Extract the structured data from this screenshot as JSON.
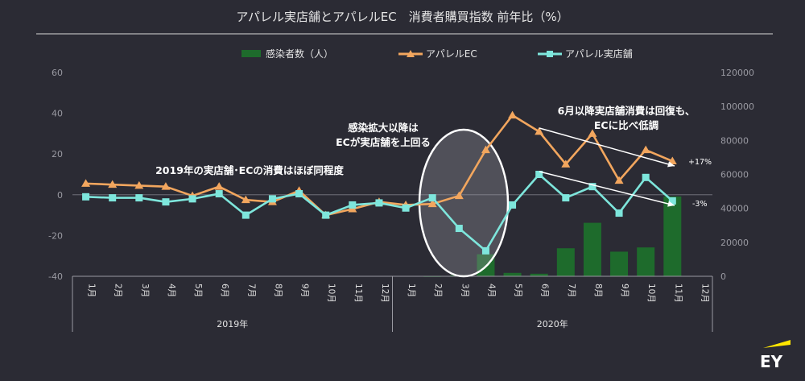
{
  "chart_data": {
    "type": "bar+line",
    "title": "アパレル実店舗とアパレルEC　消費者購買指数 前年比（%）",
    "legend": {
      "placement": "top",
      "items": [
        {
          "label": "感染者数（人）",
          "color": "#1e6b2c",
          "marker": "bar"
        },
        {
          "label": "アパレルEC",
          "color": "#f2a65e",
          "marker": "triangle"
        },
        {
          "label": "アパレル実店舗",
          "color": "#7ee6dc",
          "marker": "square"
        }
      ]
    },
    "categories": [
      "1月",
      "2月",
      "3月",
      "4月",
      "5月",
      "6月",
      "7月",
      "8月",
      "9月",
      "10月",
      "11月",
      "12月",
      "1月",
      "2月",
      "3月",
      "4月",
      "5月",
      "6月",
      "7月",
      "8月",
      "9月",
      "10月",
      "11月",
      "12月"
    ],
    "year_groups": [
      {
        "label": "2019年",
        "count": 12
      },
      {
        "label": "2020年",
        "count": 12
      }
    ],
    "y_left": {
      "min": -40,
      "max": 60,
      "ticks": [
        "60",
        "40",
        "20",
        "0",
        "-20",
        "-40"
      ]
    },
    "y_right": {
      "min": 0,
      "max": 120000,
      "ticks": [
        "120000",
        "100000",
        "80000",
        "60000",
        "40000",
        "20000",
        "0"
      ]
    },
    "series": [
      {
        "name": "アパレルEC",
        "type": "line",
        "axis": "left",
        "values": [
          5.5,
          5,
          4.5,
          4,
          -0.5,
          4,
          -2.5,
          -3.5,
          2,
          -10,
          -7,
          -3.5,
          -5,
          -4.5,
          -0.5,
          22,
          39,
          31,
          15,
          30,
          7,
          22,
          16.5,
          null
        ]
      },
      {
        "name": "アパレル実店舗",
        "type": "line",
        "axis": "left",
        "values": [
          -1,
          -1.5,
          -1.5,
          -3.5,
          -2,
          0.5,
          -10,
          -2,
          0.5,
          -10,
          -5,
          -4,
          -6.5,
          -1.5,
          -16.5,
          -27.5,
          -5,
          10,
          -1.5,
          4,
          -9,
          8.5,
          -3,
          null
        ]
      },
      {
        "name": "感染者数（人）",
        "type": "bar",
        "axis": "right",
        "values": [
          0,
          0,
          0,
          0,
          0,
          0,
          0,
          0,
          0,
          0,
          0,
          0,
          0,
          10,
          600,
          13000,
          2000,
          1500,
          16500,
          31500,
          14500,
          17000,
          47000,
          0
        ]
      }
    ],
    "annotations": [
      {
        "text": "2019年の実店舗･ECの消費はほぼ同程度"
      },
      {
        "text": "感染拡大以降は"
      },
      {
        "text": "ECが実店舗を上回る"
      },
      {
        "text": "6月以降実店舗消費は回復も、"
      },
      {
        "text": "ECに比べ低調"
      },
      {
        "text": "+17%"
      },
      {
        "text": "-3%"
      }
    ],
    "grid": false
  },
  "logo": {
    "text": "EY",
    "color": "#ffe600"
  }
}
